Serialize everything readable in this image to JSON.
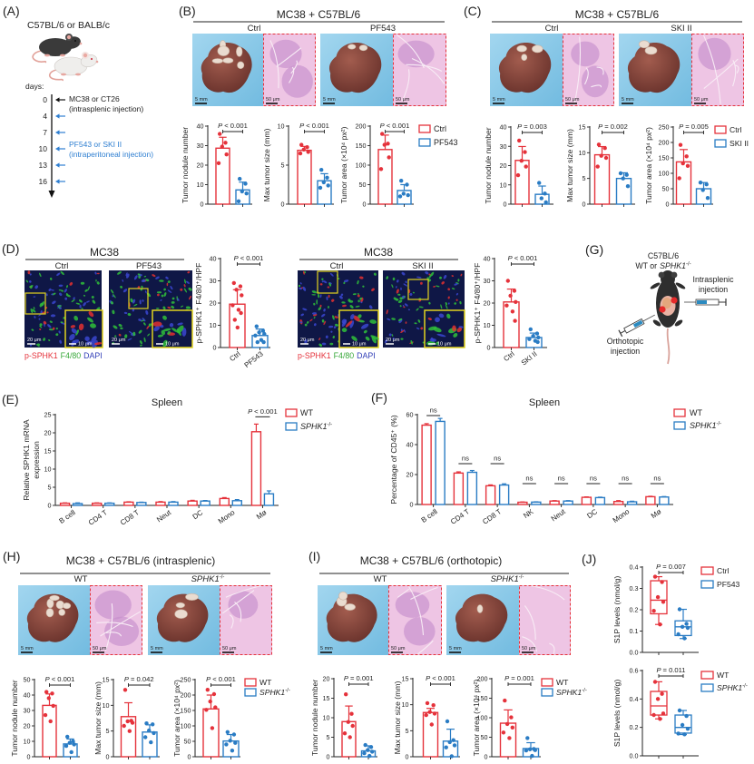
{
  "colors": {
    "red": "#e5323b",
    "blue": "#2a7cc4",
    "text": "#222222",
    "drug_blue": "#2f7fd1",
    "photo_bg": "#8ccbe8",
    "liver": "#7a3a33",
    "he_pink": "#eec5e4",
    "if_bg": "#0f1746",
    "inset_border": "#e2d41e"
  },
  "panel_a": {
    "letter": "(A)",
    "strain": "C57BL/6 or BALB/c",
    "days_label": "days:",
    "days": [
      "0",
      "4",
      "7",
      "10",
      "13",
      "16"
    ],
    "tumor_injection": [
      "MC38 or CT26",
      "(intrasplenic injection)"
    ],
    "drug_injection": [
      "PF543 or SKI II",
      "(intraperitoneal injection)"
    ]
  },
  "panel_b": {
    "letter": "(B)",
    "title": "MC38 + C57BL/6",
    "groups": [
      "Ctrl",
      "PF543"
    ],
    "scale_photo": "5 mm",
    "scale_he": "50 μm"
  },
  "panel_c": {
    "letter": "(C)",
    "title": "MC38 + C57BL/6",
    "groups": [
      "Ctrl",
      "SKI II"
    ],
    "scale_photo": "5 mm",
    "scale_he": "50 μm"
  },
  "panel_d": {
    "letter": "(D)",
    "left": {
      "title": "MC38",
      "groups": [
        "Ctrl",
        "PF543"
      ]
    },
    "right": {
      "title": "MC38",
      "groups": [
        "Ctrl",
        "SKI II"
      ]
    },
    "scale_main": "20 μm",
    "scale_inset": "10 μm",
    "stain": [
      "p-SPHK1",
      "F4/80",
      "DAPI"
    ]
  },
  "panel_e": {
    "letter": "(E)"
  },
  "panel_f": {
    "letter": "(F)"
  },
  "panel_g": {
    "letter": "(G)",
    "strain": "C57BL/6",
    "genotype": {
      "prefix": "WT or",
      "gene": "SPHK1",
      "sup": "-/-"
    },
    "intrasplenic": [
      "Intrasplenic",
      "injection"
    ],
    "orthotopic": [
      "Orthotopic",
      "injection"
    ]
  },
  "panel_h": {
    "letter": "(H)",
    "title": "MC38 + C57BL/6 (intrasplenic)",
    "groups": [
      {
        "name": "WT"
      },
      {
        "name": "SPHK1",
        "sup": "-/-"
      }
    ],
    "scale_photo": "5 mm",
    "scale_he": "50 μm"
  },
  "panel_i": {
    "letter": "(I)",
    "title": "MC38 + C57BL/6 (orthotopic)",
    "groups": [
      {
        "name": "WT"
      },
      {
        "name": "SPHK1",
        "sup": "-/-"
      }
    ],
    "scale_photo": "5 mm",
    "scale_he": "50 μm"
  },
  "panel_j": {
    "letter": "(J)"
  },
  "chart_data": [
    {
      "type": "bar",
      "panel": "B",
      "ylabel": "Tumor nodule number",
      "ylim": [
        0,
        40
      ],
      "yticks": [
        "0",
        "10",
        "20",
        "30",
        "40"
      ],
      "series": [
        {
          "name": "Ctrl",
          "mean": 28.7,
          "sd": 5.6,
          "points": [
            36,
            31.5,
            29.5,
            25.5,
            21
          ]
        },
        {
          "name": "PF543",
          "mean": 7.3,
          "sd": 4.0,
          "points": [
            13,
            10.5,
            6.5,
            5.5,
            1.5
          ]
        }
      ],
      "p": {
        "symbol": "P",
        "value": "< 0.001"
      }
    },
    {
      "type": "bar",
      "panel": "B",
      "ylabel": "Max tumor size (mm)",
      "ylim": [
        0,
        10
      ],
      "yticks": [
        "0",
        "5",
        "10"
      ],
      "series": [
        {
          "name": "Ctrl",
          "mean": 6.9,
          "sd": 0.5,
          "points": [
            7.6,
            7.3,
            7.0,
            6.7,
            6.5
          ]
        },
        {
          "name": "PF543",
          "mean": 3.0,
          "sd": 0.9,
          "points": [
            4.4,
            3.4,
            2.8,
            2.4,
            2.1
          ]
        }
      ],
      "p": {
        "symbol": "P",
        "value": "< 0.001"
      }
    },
    {
      "type": "bar",
      "panel": "B",
      "ylabel": "Tumor area (×10⁴ px²)",
      "ylim": [
        0,
        200
      ],
      "yticks": [
        "0",
        "50",
        "100",
        "150",
        "200"
      ],
      "series": [
        {
          "name": "Ctrl",
          "mean": 140,
          "sd": 37,
          "points": [
            180,
            155,
            152,
            120,
            90
          ]
        },
        {
          "name": "PF543",
          "mean": 35,
          "sd": 15,
          "points": [
            60,
            50,
            27,
            23,
            20
          ]
        }
      ],
      "p": {
        "symbol": "P",
        "value": "< 0.001"
      }
    },
    {
      "type": "bar",
      "panel": "C",
      "ylabel": "Tumor nodule number",
      "ylim": [
        0,
        40
      ],
      "yticks": [
        "0",
        "10",
        "20",
        "30",
        "40"
      ],
      "series": [
        {
          "name": "Ctrl",
          "mean": 22.7,
          "sd": 7.2,
          "points": [
            33,
            27,
            22.5,
            19.5,
            15
          ]
        },
        {
          "name": "SKI II",
          "mean": 5.1,
          "sd": 4.3,
          "points": [
            11,
            5.5,
            3,
            1
          ]
        }
      ],
      "p": {
        "symbol": "P",
        "value": "= 0.003"
      }
    },
    {
      "type": "bar",
      "panel": "C",
      "ylabel": "Max tumor size (mm)",
      "ylim": [
        0,
        15
      ],
      "yticks": [
        "0",
        "5",
        "10",
        "15"
      ],
      "series": [
        {
          "name": "Ctrl",
          "mean": 9.6,
          "sd": 1.6,
          "points": [
            11.6,
            10.9,
            9.4,
            9.0,
            7.3
          ]
        },
        {
          "name": "SKI II",
          "mean": 5.0,
          "sd": 1.1,
          "points": [
            6.0,
            5.7,
            5.0,
            3.5
          ]
        }
      ],
      "p": {
        "symbol": "P",
        "value": "= 0.002"
      }
    },
    {
      "type": "bar",
      "panel": "C",
      "ylabel": "Tumor area (×10⁴ px²)",
      "ylim": [
        0,
        250
      ],
      "yticks": [
        "0",
        "50",
        "100",
        "150",
        "200",
        "250"
      ],
      "series": [
        {
          "name": "Ctrl",
          "mean": 137,
          "sd": 40,
          "points": [
            192,
            155,
            132,
            124,
            84
          ]
        },
        {
          "name": "SKI II",
          "mean": 50,
          "sd": 20,
          "points": [
            70,
            64,
            46,
            20
          ]
        }
      ],
      "p": {
        "symbol": "P",
        "value": "= 0.005"
      }
    },
    {
      "type": "bar",
      "panel": "D",
      "ylabel": "p-SPHK1⁺ F4/80⁺/HPF",
      "ylim": [
        0,
        40
      ],
      "yticks": [
        "0",
        "10",
        "20",
        "30",
        "40"
      ],
      "categories": [
        "Ctrl",
        "PF543"
      ],
      "series": [
        {
          "name": "Ctrl",
          "mean": 19.5,
          "sd": 6.5,
          "points": [
            29,
            27.5,
            26,
            23.5,
            19,
            17,
            15.5,
            12.5,
            9
          ]
        },
        {
          "name": "PF543",
          "mean": 5.4,
          "sd": 2.9,
          "points": [
            9.5,
            7.5,
            6.8,
            6.1,
            5.4,
            3.4,
            2.4,
            2.4
          ]
        }
      ],
      "p": {
        "symbol": "P",
        "value": "< 0.001"
      }
    },
    {
      "type": "bar",
      "panel": "D",
      "ylabel": "p-SPHK1⁺ F4/80⁺/HPF",
      "ylim": [
        0,
        40
      ],
      "yticks": [
        "0",
        "10",
        "20",
        "30",
        "40"
      ],
      "categories": [
        "Ctrl",
        "SKI II"
      ],
      "series": [
        {
          "name": "Ctrl",
          "mean": 20.5,
          "sd": 5.8,
          "points": [
            30,
            25.5,
            23.3,
            20.5,
            18.9,
            16.2,
            12
          ]
        },
        {
          "name": "SKI II",
          "mean": 4.5,
          "sd": 2.0,
          "points": [
            8.2,
            6.3,
            5.2,
            4.5,
            3.8,
            3.0,
            2.5
          ]
        }
      ],
      "p": {
        "symbol": "P",
        "value": "< 0.001"
      }
    },
    {
      "type": "bar",
      "panel": "E",
      "title": "Spleen",
      "ylabel": [
        "Relative SPHK1 mRNA",
        "expression"
      ],
      "ylim": [
        0,
        25
      ],
      "yticks": [
        "0",
        "5",
        "10",
        "15",
        "20",
        "25"
      ],
      "categories": [
        "B cell",
        "CD4 T",
        "CD8 T",
        "Neut",
        "DC",
        "Mono",
        "Mø"
      ],
      "series": [
        {
          "name": "WT",
          "values": [
            0.6,
            0.6,
            0.9,
            0.9,
            1.2,
            1.9,
            20.3
          ],
          "errors": [
            0.1,
            0.1,
            0.1,
            0.15,
            0.2,
            0.25,
            2.1
          ]
        },
        {
          "name": "SPHK1",
          "sup": "-/-",
          "values": [
            0.5,
            0.6,
            0.8,
            0.9,
            1.2,
            1.3,
            3.2
          ],
          "errors": [
            0.2,
            0.1,
            0.1,
            0.15,
            0.15,
            0.3,
            0.8
          ]
        }
      ],
      "annotations": [
        {
          "category": "Mø",
          "p": {
            "symbol": "P",
            "value": "< 0.001"
          }
        }
      ]
    },
    {
      "type": "bar",
      "panel": "F",
      "title": "Spleen",
      "ylabel": "Percentage of CD45⁺ (%)",
      "ylim": [
        0,
        60
      ],
      "yticks": [
        "0",
        "20",
        "40",
        "60"
      ],
      "categories": [
        "B cell",
        "CD4 T",
        "CD8 T",
        "NK",
        "Neut",
        "DC",
        "Mono",
        "Mø"
      ],
      "series": [
        {
          "name": "WT",
          "values": [
            53,
            21,
            12.5,
            1.5,
            2.3,
            4.8,
            2.0,
            5.2
          ],
          "errors": [
            1,
            0.8,
            0.6,
            0.2,
            0.3,
            0.3,
            0.6,
            0.3
          ]
        },
        {
          "name": "SPHK1",
          "sup": "-/-",
          "values": [
            55.5,
            21.5,
            13,
            1.6,
            2.3,
            4.6,
            1.8,
            5.0
          ],
          "errors": [
            2,
            1.2,
            0.8,
            0.2,
            0.3,
            0.3,
            0.4,
            0.3
          ]
        }
      ],
      "annotations": [
        "ns",
        "ns",
        "ns",
        "ns",
        "ns",
        "ns",
        "ns",
        "ns"
      ]
    },
    {
      "type": "bar",
      "panel": "H",
      "ylabel": "Tumor nodule number",
      "ylim": [
        0,
        50
      ],
      "yticks": [
        "0",
        "10",
        "20",
        "30",
        "40",
        "50"
      ],
      "series": [
        {
          "name": "WT",
          "mean": 33.3,
          "sd": 7.4,
          "points": [
            42,
            41,
            38,
            33,
            27,
            23
          ]
        },
        {
          "name": "SPHK1",
          "sup": "-/-",
          "mean": 8.3,
          "sd": 3.2,
          "points": [
            13,
            10,
            9,
            8,
            7,
            3
          ]
        }
      ],
      "p": {
        "symbol": "P",
        "value": "< 0.001"
      }
    },
    {
      "type": "bar",
      "panel": "H",
      "ylabel": "Max tumor size (mm)",
      "ylim": [
        0,
        15
      ],
      "yticks": [
        "0",
        "5",
        "10",
        "15"
      ],
      "series": [
        {
          "name": "WT",
          "mean": 7.8,
          "sd": 2.7,
          "points": [
            13,
            7,
            6.9,
            6.6,
            6,
            5
          ]
        },
        {
          "name": "SPHK1",
          "sup": "-/-",
          "mean": 4.8,
          "sd": 1.4,
          "points": [
            6.5,
            6.3,
            5.1,
            4.6,
            3.8,
            2.8
          ]
        }
      ],
      "p": {
        "symbol": "P",
        "value": "= 0.042"
      }
    },
    {
      "type": "bar",
      "panel": "H",
      "ylabel": "Tumor area (×10⁴ px²)",
      "ylim": [
        0,
        250
      ],
      "yticks": [
        "0",
        "50",
        "100",
        "150",
        "200",
        "250"
      ],
      "series": [
        {
          "name": "WT",
          "mean": 155,
          "sd": 45,
          "points": [
            217,
            203,
            179,
            160,
            152,
            93
          ]
        },
        {
          "name": "SPHK1",
          "sup": "-/-",
          "mean": 51,
          "sd": 21,
          "points": [
            80,
            72,
            52,
            45,
            40,
            20
          ]
        }
      ],
      "p": {
        "symbol": "P",
        "value": "< 0.001"
      }
    },
    {
      "type": "bar",
      "panel": "I",
      "ylabel": "Tumor nodule number",
      "ylim": [
        0,
        20
      ],
      "yticks": [
        "0",
        "5",
        "10",
        "15",
        "20"
      ],
      "series": [
        {
          "name": "WT",
          "mean": 9.0,
          "sd": 4.0,
          "points": [
            16,
            11,
            8.9,
            7.9,
            6,
            5
          ]
        },
        {
          "name": "SPHK1",
          "sup": "-/-",
          "mean": 1.5,
          "sd": 1.3,
          "points": [
            3,
            2.5,
            1.7,
            1.3,
            0.9,
            0.2
          ]
        }
      ],
      "p": {
        "symbol": "P",
        "value": "= 0.001"
      }
    },
    {
      "type": "bar",
      "panel": "I",
      "ylabel": "Max tumor size (mm)",
      "ylim": [
        0,
        15
      ],
      "yticks": [
        "0",
        "5",
        "10",
        "15"
      ],
      "series": [
        {
          "name": "WT",
          "mean": 8.5,
          "sd": 0.8,
          "points": [
            10.3,
            9.9,
            8.6,
            8.3,
            8.0,
            6.2
          ]
        },
        {
          "name": "SPHK1",
          "sup": "-/-",
          "mean": 3.0,
          "sd": 2.3,
          "points": [
            6.8,
            3.2,
            2.8,
            2.2,
            1.8,
            0.1
          ]
        }
      ],
      "p": {
        "symbol": "P",
        "value": "< 0.001"
      }
    },
    {
      "type": "bar",
      "panel": "I",
      "ylabel": "Tumor area (×10⁴ px²)",
      "ylim": [
        0,
        200
      ],
      "yticks": [
        "0",
        "50",
        "100",
        "150",
        "200"
      ],
      "series": [
        {
          "name": "WT",
          "mean": 86,
          "sd": 34,
          "points": [
            144,
            101,
            84,
            75,
            62,
            48
          ]
        },
        {
          "name": "SPHK1",
          "sup": "-/-",
          "mean": 21,
          "sd": 15,
          "points": [
            48,
            20,
            19,
            17,
            16,
            2
          ]
        }
      ],
      "p": {
        "symbol": "P",
        "value": "= 0.001"
      }
    },
    {
      "type": "box",
      "panel": "J",
      "ylabel": "S1P levels (nmol/g)",
      "ylim": [
        0,
        0.4
      ],
      "yticks": [
        "0.0",
        "0.1",
        "0.2",
        "0.3",
        "0.4"
      ],
      "series": [
        {
          "name": "Ctrl",
          "min": 0.131,
          "q1": 0.181,
          "median": 0.245,
          "q3": 0.336,
          "max": 0.355,
          "points": [
            0.355,
            0.33,
            0.259,
            0.237,
            0.195,
            0.131
          ]
        },
        {
          "name": "PF543",
          "min": 0.065,
          "q1": 0.079,
          "median": 0.12,
          "q3": 0.148,
          "max": 0.202,
          "points": [
            0.202,
            0.134,
            0.12,
            0.115,
            0.085,
            0.066
          ]
        }
      ],
      "p": {
        "symbol": "P",
        "value": "= 0.007"
      }
    },
    {
      "type": "box",
      "panel": "J",
      "ylabel": "S1P levels (nmol/g)",
      "ylim": [
        0,
        0.6
      ],
      "yticks": [
        "0.0",
        "0.2",
        "0.4",
        "0.6"
      ],
      "series": [
        {
          "name": "WT",
          "min": 0.26,
          "q1": 0.287,
          "median": 0.351,
          "q3": 0.453,
          "max": 0.521,
          "points": [
            0.52,
            0.436,
            0.4,
            0.298,
            0.287,
            0.26
          ]
        },
        {
          "name": "SPHK1",
          "sup": "-/-",
          "min": 0.15,
          "q1": 0.16,
          "median": 0.2,
          "q3": 0.287,
          "max": 0.319,
          "points": [
            0.319,
            0.28,
            0.217,
            0.19,
            0.157,
            0.151
          ]
        }
      ],
      "p": {
        "symbol": "P",
        "value": "= 0.011"
      }
    }
  ]
}
